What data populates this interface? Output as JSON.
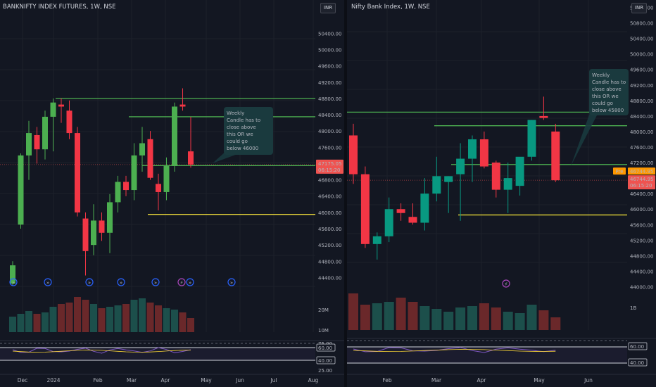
{
  "left": {
    "title": "BANKNIFTY INDEX FUTURES, 1W, NSE",
    "currency": "INR",
    "price_ticks": [
      "50400.00",
      "50000.00",
      "49600.00",
      "49200.00",
      "48800.00",
      "48400.00",
      "48000.00",
      "47600.00",
      "47200.00",
      "46800.00",
      "46400.00",
      "46000.00",
      "45600.00",
      "45200.00",
      "44800.00",
      "44400.00"
    ],
    "price_label": "47175.05",
    "countdown": "06:15:20",
    "volume_ticks": [
      "20M",
      "10M"
    ],
    "rsi_ticks": [
      "75.00",
      "60.00",
      "40.00",
      "25.00"
    ],
    "x_ticks": [
      "Dec",
      "2024",
      "Feb",
      "Mar",
      "Apr",
      "May",
      "Jun",
      "Jul",
      "Aug"
    ],
    "annotation": [
      "Weekly",
      "Candle has to",
      "close above",
      "this OR we",
      "could go",
      "below 46000"
    ]
  },
  "right": {
    "title": "Nifty Bank Index, 1W, NSE",
    "currency": "INR",
    "price_ticks": [
      "51200.00",
      "50800.00",
      "50400.00",
      "50000.00",
      "49600.00",
      "49200.00",
      "48800.00",
      "48400.00",
      "48000.00",
      "47600.00",
      "47200.00",
      "46800.00",
      "46400.00",
      "46000.00",
      "45600.00",
      "45200.00",
      "44800.00",
      "44400.00",
      "44000.00"
    ],
    "pre_tag": "Pre",
    "pre_value": "46744.95",
    "price_label": "46744.95",
    "countdown": "06:15:20",
    "volume_ticks": [
      "1B"
    ],
    "rsi_ticks": [
      "60.00",
      "40.00"
    ],
    "x_ticks": [
      "Feb",
      "Mar",
      "Apr",
      "May",
      "Jun"
    ],
    "annotation": [
      "Weekly",
      "Candle has to",
      "close above",
      "this OR we",
      "could go",
      "below 45800"
    ]
  },
  "colors": {
    "background": "#131722",
    "up": "#26a69a",
    "down": "#ef5350",
    "left_up": "#4caf50",
    "left_down": "#f23645",
    "level_green": "#4caf50",
    "level_yellow": "#ffeb3b",
    "annotation_text": "#ffeb3b",
    "annotation_bg": "#1a3a3e",
    "rsi_line": "#7e57c2",
    "rsi_ma": "#fdd835",
    "pre_tag": "#ff9800"
  },
  "chart_data": [
    {
      "type": "candlestick",
      "title": "BANKNIFTY INDEX FUTURES, 1W, NSE",
      "ylim": [
        44200,
        50700
      ],
      "candles": [
        {
          "o": 44250,
          "h": 44800,
          "l": 44200,
          "c": 44700
        },
        {
          "o": 45700,
          "h": 47450,
          "l": 45600,
          "c": 47400
        },
        {
          "o": 47400,
          "h": 48250,
          "l": 46800,
          "c": 47950
        },
        {
          "o": 47900,
          "h": 48100,
          "l": 47200,
          "c": 47550
        },
        {
          "o": 47550,
          "h": 48500,
          "l": 47300,
          "c": 48350
        },
        {
          "o": 48350,
          "h": 48800,
          "l": 47500,
          "c": 48700
        },
        {
          "o": 48650,
          "h": 48800,
          "l": 48200,
          "c": 48600
        },
        {
          "o": 48500,
          "h": 48750,
          "l": 47800,
          "c": 47950
        },
        {
          "o": 47950,
          "h": 48100,
          "l": 45900,
          "c": 46000
        },
        {
          "o": 45850,
          "h": 46000,
          "l": 44450,
          "c": 45050
        },
        {
          "o": 45200,
          "h": 46200,
          "l": 44950,
          "c": 45800
        },
        {
          "o": 45800,
          "h": 46000,
          "l": 45300,
          "c": 45500
        },
        {
          "o": 45500,
          "h": 46450,
          "l": 45000,
          "c": 46250
        },
        {
          "o": 46250,
          "h": 46900,
          "l": 46000,
          "c": 46750
        },
        {
          "o": 46750,
          "h": 46900,
          "l": 46400,
          "c": 46550
        },
        {
          "o": 46550,
          "h": 47700,
          "l": 46300,
          "c": 47400
        },
        {
          "o": 47400,
          "h": 48100,
          "l": 47000,
          "c": 47700
        },
        {
          "o": 47800,
          "h": 48000,
          "l": 46800,
          "c": 46850
        },
        {
          "o": 46700,
          "h": 46950,
          "l": 46050,
          "c": 46500
        },
        {
          "o": 46500,
          "h": 47350,
          "l": 46300,
          "c": 47150
        },
        {
          "o": 47150,
          "h": 48700,
          "l": 47000,
          "c": 48600
        },
        {
          "o": 48650,
          "h": 49050,
          "l": 48500,
          "c": 48600
        },
        {
          "o": 47500,
          "h": 48350,
          "l": 47100,
          "c": 47175
        }
      ],
      "levels": [
        48800,
        48350,
        47150,
        45950
      ],
      "x_ticks": [
        "Dec",
        "2024",
        "Feb",
        "Mar",
        "Apr",
        "May",
        "Jun",
        "Jul",
        "Aug"
      ]
    },
    {
      "type": "candlestick",
      "title": "Nifty Bank Index, 1W, NSE",
      "ylim": [
        43900,
        51300
      ],
      "candles": [
        {
          "o": 47900,
          "h": 48200,
          "l": 46650,
          "c": 46900
        },
        {
          "o": 46900,
          "h": 47100,
          "l": 45000,
          "c": 45100
        },
        {
          "o": 45100,
          "h": 45400,
          "l": 44700,
          "c": 45300
        },
        {
          "o": 45300,
          "h": 46300,
          "l": 45150,
          "c": 46000
        },
        {
          "o": 46000,
          "h": 46150,
          "l": 45700,
          "c": 45900
        },
        {
          "o": 45800,
          "h": 46150,
          "l": 45600,
          "c": 45650
        },
        {
          "o": 45650,
          "h": 46800,
          "l": 45450,
          "c": 46400
        },
        {
          "o": 46400,
          "h": 47350,
          "l": 46200,
          "c": 46850
        },
        {
          "o": 46700,
          "h": 46850,
          "l": 45900,
          "c": 46850
        },
        {
          "o": 46900,
          "h": 47700,
          "l": 45700,
          "c": 47300
        },
        {
          "o": 47300,
          "h": 47900,
          "l": 46700,
          "c": 47800
        },
        {
          "o": 47800,
          "h": 48000,
          "l": 47050,
          "c": 47100
        },
        {
          "o": 47200,
          "h": 47250,
          "l": 46300,
          "c": 46500
        },
        {
          "o": 46500,
          "h": 47200,
          "l": 45900,
          "c": 46800
        },
        {
          "o": 46600,
          "h": 47300,
          "l": 46350,
          "c": 47350
        },
        {
          "o": 47350,
          "h": 48300,
          "l": 47250,
          "c": 48300
        },
        {
          "o": 48400,
          "h": 48900,
          "l": 48300,
          "c": 48350
        },
        {
          "o": 48000,
          "h": 48200,
          "l": 46700,
          "c": 46744.95
        }
      ],
      "levels": [
        48500,
        48150,
        47150,
        45850
      ],
      "x_ticks": [
        "Feb",
        "Mar",
        "Apr",
        "May",
        "Jun"
      ]
    }
  ]
}
